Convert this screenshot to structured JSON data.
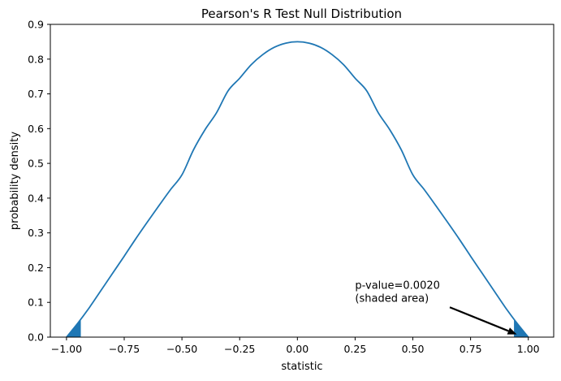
{
  "chart_data": {
    "type": "line",
    "title": "Pearson's R Test Null Distribution",
    "xlabel": "statistic",
    "ylabel": "probability density",
    "xlim": [
      -1.07,
      1.11
    ],
    "ylim": [
      0,
      0.9
    ],
    "xticks": [
      -1.0,
      -0.75,
      -0.5,
      -0.25,
      0.0,
      0.25,
      0.5,
      0.75,
      1.0
    ],
    "xtick_labels": [
      "−1.00",
      "−0.75",
      "−0.50",
      "−0.25",
      "0.00",
      "0.25",
      "0.50",
      "0.75",
      "1.00"
    ],
    "yticks": [
      0.0,
      0.1,
      0.2,
      0.3,
      0.4,
      0.5,
      0.6,
      0.7,
      0.8,
      0.9
    ],
    "ytick_labels": [
      "0.0",
      "0.1",
      "0.2",
      "0.3",
      "0.4",
      "0.5",
      "0.6",
      "0.7",
      "0.8",
      "0.9"
    ],
    "series": [
      {
        "color": "#1f77b4",
        "x": [
          -1.0,
          -0.95,
          -0.9,
          -0.85,
          -0.8,
          -0.75,
          -0.7,
          -0.65,
          -0.6,
          -0.55,
          -0.5,
          -0.45,
          -0.4,
          -0.35,
          -0.3,
          -0.25,
          -0.2,
          -0.15,
          -0.1,
          -0.05,
          0.0,
          0.05,
          0.1,
          0.15,
          0.2,
          0.25,
          0.3,
          0.35,
          0.4,
          0.45,
          0.5,
          0.55,
          0.6,
          0.65,
          0.7,
          0.75,
          0.8,
          0.85,
          0.9,
          0.95,
          1.0
        ],
        "y": [
          0.0,
          0.041,
          0.086,
          0.135,
          0.184,
          0.233,
          0.283,
          0.331,
          0.378,
          0.424,
          0.467,
          0.539,
          0.597,
          0.646,
          0.709,
          0.745,
          0.784,
          0.813,
          0.834,
          0.846,
          0.85,
          0.846,
          0.834,
          0.813,
          0.784,
          0.745,
          0.709,
          0.646,
          0.597,
          0.539,
          0.467,
          0.424,
          0.378,
          0.331,
          0.283,
          0.233,
          0.184,
          0.135,
          0.086,
          0.041,
          0.0
        ]
      }
    ],
    "shaded_regions": [
      {
        "from": -1.0,
        "to": -0.938,
        "color": "#1f77b4"
      },
      {
        "from": 0.938,
        "to": 1.0,
        "color": "#1f77b4"
      }
    ],
    "annotation": {
      "lines": [
        "p-value=0.0020",
        "(shaded area)"
      ],
      "text_x": 0.25,
      "text_y": 0.095,
      "arrow_from": [
        0.66,
        0.086
      ],
      "arrow_to": [
        0.95,
        0.008
      ]
    },
    "grid": false,
    "legend": "none"
  }
}
